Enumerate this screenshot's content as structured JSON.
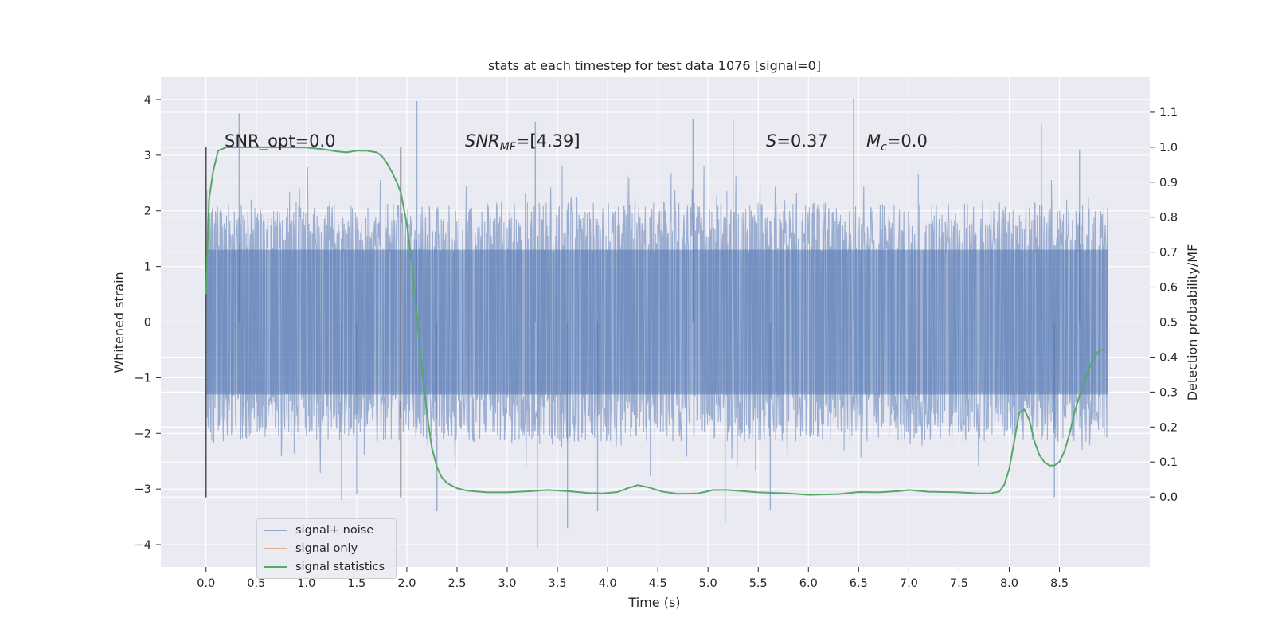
{
  "chart_data": {
    "type": "line",
    "title": "stats at each timestep for test data 1076 [signal=0]",
    "xlabel": "Time (s)",
    "ylabel": "Whitened strain",
    "ylabel_right": "Detection probability/MF",
    "xlim": [
      -0.45,
      9.4
    ],
    "ylim": [
      -4.4,
      4.4
    ],
    "ylim_right": [
      -0.2,
      1.2
    ],
    "x_ticks": [
      0.0,
      0.5,
      1.0,
      1.5,
      2.0,
      2.5,
      3.0,
      3.5,
      4.0,
      4.5,
      5.0,
      5.5,
      6.0,
      6.5,
      7.0,
      7.5,
      8.0,
      8.5
    ],
    "x_tick_labels": [
      "0.0",
      "0.5",
      "1.0",
      "1.5",
      "2.0",
      "2.5",
      "3.0",
      "3.5",
      "4.0",
      "4.5",
      "5.0",
      "5.5",
      "6.0",
      "6.5",
      "7.0",
      "7.5",
      "8.0",
      "8.5"
    ],
    "y_ticks": [
      4,
      3,
      2,
      1,
      0,
      -1,
      -2,
      -3,
      -4
    ],
    "y_tick_labels": [
      "4",
      "3",
      "2",
      "1",
      "0",
      "−1",
      "−2",
      "−3",
      "−4"
    ],
    "y_ticks_right": [
      1.1,
      1.0,
      0.9,
      0.8,
      0.7,
      0.6,
      0.5,
      0.4,
      0.3,
      0.2,
      0.1,
      0.0
    ],
    "y_tick_labels_right": [
      "1.1",
      "1.0",
      "0.9",
      "0.8",
      "0.7",
      "0.6",
      "0.5",
      "0.4",
      "0.3",
      "0.2",
      "0.1",
      "0.0"
    ],
    "grid": true,
    "legend_position": "bottom-left",
    "legend": [
      {
        "label": "signal+ noise",
        "color": "#4c72b0"
      },
      {
        "label": "signal only",
        "color": "#dd8452"
      },
      {
        "label": "signal statistics",
        "color": "#55a868"
      }
    ],
    "annotations": {
      "snr_opt": "SNR_opt=0.0",
      "snr_mf_main": "SNR",
      "snr_mf_sub": "MF",
      "snr_mf_value": "=[4.39]",
      "s_symbol": "S",
      "s_value": "=0.37",
      "mc_symbol": "M",
      "mc_sub": "c",
      "mc_value": "=0.0"
    },
    "vertical_markers": [
      {
        "x": 0.0,
        "y_range": [
          -3.15,
          3.15
        ]
      },
      {
        "x": 1.94,
        "y_range": [
          -3.15,
          3.15
        ]
      }
    ],
    "noise": {
      "x_range": [
        0.0,
        8.98
      ],
      "core_band": [
        -1.3,
        1.3
      ],
      "typical_extent": [
        -2.4,
        2.4
      ],
      "max": 4.0,
      "min": -4.0,
      "color": "#4c72b0",
      "alpha": 0.5,
      "peaks": [
        {
          "x": 0.33,
          "y": 3.75
        },
        {
          "x": 2.1,
          "y": 3.97
        },
        {
          "x": 3.28,
          "y": 3.6
        },
        {
          "x": 4.85,
          "y": 3.65
        },
        {
          "x": 5.25,
          "y": 3.65
        },
        {
          "x": 6.45,
          "y": 4.02
        },
        {
          "x": 8.32,
          "y": 3.55
        },
        {
          "x": 8.7,
          "y": 3.1
        }
      ],
      "troughs": [
        {
          "x": 1.35,
          "y": -3.2
        },
        {
          "x": 1.5,
          "y": -3.1
        },
        {
          "x": 2.3,
          "y": -3.4
        },
        {
          "x": 3.3,
          "y": -4.05
        },
        {
          "x": 3.6,
          "y": -3.7
        },
        {
          "x": 3.9,
          "y": -3.4
        },
        {
          "x": 5.17,
          "y": -3.6
        },
        {
          "x": 5.62,
          "y": -3.38
        },
        {
          "x": 8.45,
          "y": -3.15
        }
      ]
    },
    "series": [
      {
        "name": "signal statistics",
        "axis": "right",
        "color": "#55a868",
        "x": [
          0.0,
          0.03,
          0.07,
          0.12,
          0.2,
          0.3,
          0.5,
          0.8,
          1.0,
          1.15,
          1.3,
          1.4,
          1.5,
          1.6,
          1.7,
          1.75,
          1.8,
          1.85,
          1.9,
          1.94,
          2.0,
          2.05,
          2.1,
          2.15,
          2.2,
          2.25,
          2.3,
          2.35,
          2.4,
          2.5,
          2.6,
          2.8,
          3.0,
          3.2,
          3.4,
          3.6,
          3.8,
          3.95,
          4.1,
          4.2,
          4.3,
          4.4,
          4.55,
          4.7,
          4.9,
          5.05,
          5.2,
          5.5,
          5.8,
          6.0,
          6.3,
          6.5,
          6.7,
          6.9,
          7.0,
          7.2,
          7.5,
          7.7,
          7.8,
          7.9,
          7.95,
          8.0,
          8.05,
          8.1,
          8.15,
          8.2,
          8.25,
          8.3,
          8.35,
          8.4,
          8.45,
          8.5,
          8.55,
          8.6,
          8.65,
          8.7,
          8.75,
          8.8,
          8.85,
          8.9,
          8.95
        ],
        "values": [
          0.58,
          0.85,
          0.93,
          0.99,
          1.0,
          1.0,
          1.0,
          1.0,
          0.999,
          0.995,
          0.988,
          0.985,
          0.99,
          0.99,
          0.985,
          0.975,
          0.955,
          0.93,
          0.9,
          0.87,
          0.78,
          0.67,
          0.52,
          0.37,
          0.24,
          0.14,
          0.085,
          0.055,
          0.04,
          0.025,
          0.018,
          0.013,
          0.013,
          0.016,
          0.02,
          0.017,
          0.011,
          0.01,
          0.014,
          0.025,
          0.034,
          0.028,
          0.015,
          0.009,
          0.01,
          0.02,
          0.02,
          0.013,
          0.01,
          0.006,
          0.008,
          0.014,
          0.013,
          0.017,
          0.02,
          0.015,
          0.013,
          0.01,
          0.01,
          0.015,
          0.035,
          0.08,
          0.16,
          0.24,
          0.25,
          0.22,
          0.16,
          0.12,
          0.1,
          0.09,
          0.09,
          0.1,
          0.13,
          0.18,
          0.24,
          0.29,
          0.33,
          0.37,
          0.4,
          0.42,
          0.42
        ]
      }
    ]
  }
}
